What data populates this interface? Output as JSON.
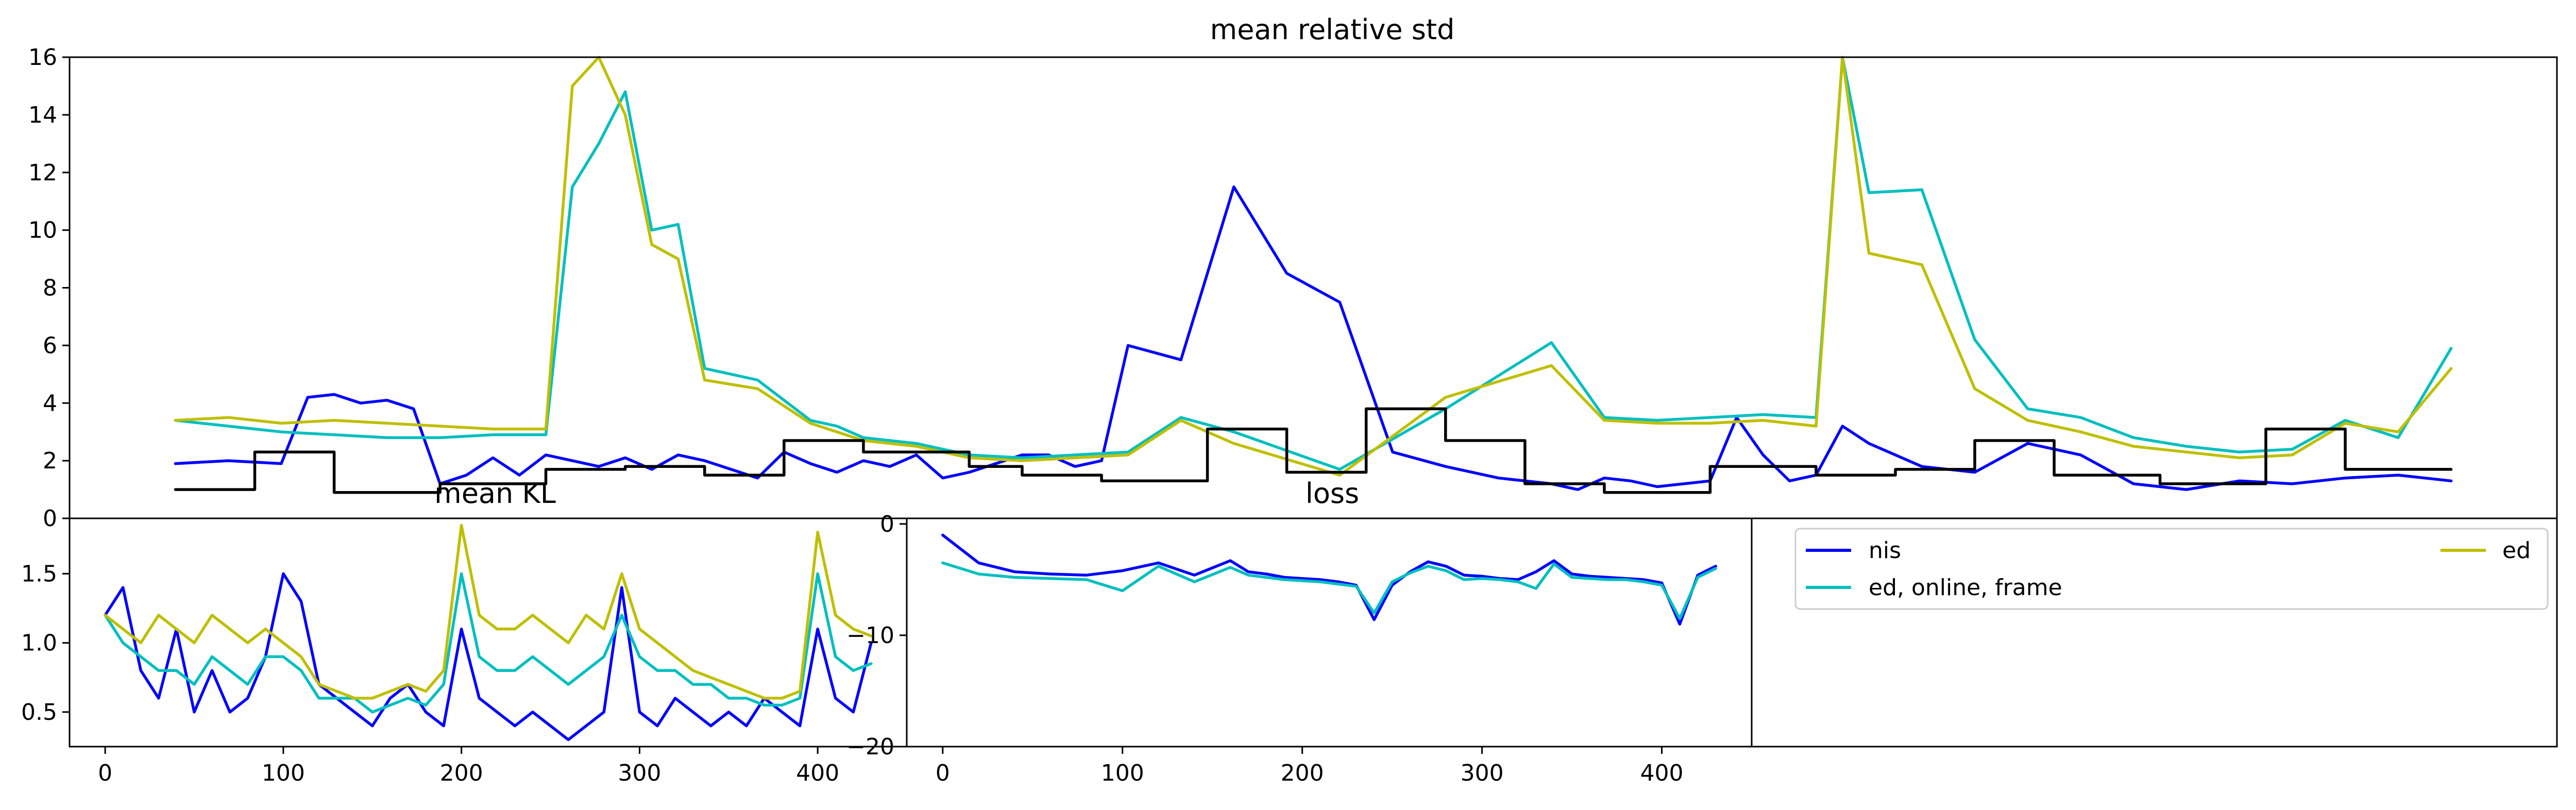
{
  "colors": {
    "nis": "#0000ff",
    "ed_online_frame": "#00bfbf",
    "ed": "#bfbf00",
    "reference": "#000000",
    "background": "#ffffff",
    "axes": "#000000"
  },
  "legend": {
    "placement": "bottom-right panel",
    "entries": [
      {
        "label": "nis",
        "color": "#0000ff"
      },
      {
        "label": "ed, online, frame",
        "color": "#00bfbf"
      },
      {
        "label": "ed",
        "color": "#bfbf00"
      }
    ]
  },
  "chart_data": [
    {
      "type": "line",
      "title": "mean relative std",
      "xlabel": "",
      "ylabel": "",
      "xlim": [
        -20,
        450
      ],
      "ylim": [
        0,
        16
      ],
      "yticks": [
        "0",
        "2",
        "4",
        "6",
        "8",
        "10",
        "12",
        "14",
        "16"
      ],
      "xticks": [],
      "grid": false,
      "series": [
        {
          "name": "nis",
          "color": "#0000ff",
          "x": [
            0,
            10,
            20,
            25,
            30,
            35,
            40,
            45,
            50,
            55,
            60,
            65,
            70,
            75,
            80,
            85,
            90,
            95,
            100,
            110,
            115,
            120,
            125,
            130,
            135,
            140,
            145,
            150,
            155,
            160,
            165,
            170,
            175,
            180,
            190,
            200,
            210,
            220,
            230,
            240,
            250,
            260,
            265,
            270,
            275,
            280,
            285,
            290,
            295,
            300,
            305,
            310,
            315,
            320,
            330,
            340,
            350,
            360,
            370,
            380,
            390,
            400,
            410,
            420,
            430
          ],
          "y": [
            1.9,
            2.0,
            1.9,
            4.2,
            4.3,
            4.0,
            4.1,
            3.8,
            1.2,
            1.5,
            2.1,
            1.5,
            2.2,
            2.0,
            1.8,
            2.1,
            1.7,
            2.2,
            2.0,
            1.4,
            2.3,
            1.9,
            1.6,
            2.0,
            1.8,
            2.2,
            1.4,
            1.6,
            1.9,
            2.2,
            2.2,
            1.8,
            2.0,
            6.0,
            5.5,
            11.5,
            8.5,
            7.5,
            2.3,
            1.8,
            1.4,
            1.2,
            1.0,
            1.4,
            1.3,
            1.1,
            1.2,
            1.3,
            3.5,
            2.2,
            1.3,
            1.5,
            3.2,
            2.6,
            1.8,
            1.6,
            2.6,
            2.2,
            1.2,
            1.0,
            1.3,
            1.2,
            1.4,
            1.5,
            1.3
          ]
        },
        {
          "name": "ed, online, frame",
          "color": "#00bfbf",
          "x": [
            0,
            10,
            20,
            30,
            40,
            50,
            60,
            70,
            75,
            80,
            85,
            90,
            95,
            100,
            110,
            120,
            125,
            130,
            135,
            140,
            150,
            160,
            170,
            180,
            190,
            200,
            220,
            240,
            260,
            270,
            280,
            290,
            300,
            310,
            315,
            320,
            330,
            340,
            350,
            360,
            370,
            380,
            390,
            400,
            410,
            420,
            430
          ],
          "y": [
            3.4,
            3.2,
            3.0,
            2.9,
            2.8,
            2.8,
            2.9,
            2.9,
            11.5,
            13.0,
            14.8,
            10.0,
            10.2,
            5.2,
            4.8,
            3.4,
            3.2,
            2.8,
            2.7,
            2.6,
            2.2,
            2.1,
            2.2,
            2.3,
            3.5,
            3.0,
            1.7,
            3.8,
            6.1,
            3.5,
            3.4,
            3.5,
            3.6,
            3.5,
            16.0,
            11.3,
            11.4,
            6.2,
            3.8,
            3.5,
            2.8,
            2.5,
            2.3,
            2.4,
            3.4,
            2.8,
            5.9
          ]
        },
        {
          "name": "ed",
          "color": "#bfbf00",
          "x": [
            0,
            10,
            20,
            30,
            40,
            50,
            60,
            70,
            75,
            80,
            85,
            90,
            95,
            100,
            110,
            120,
            125,
            130,
            135,
            140,
            150,
            160,
            170,
            180,
            190,
            200,
            220,
            240,
            260,
            270,
            280,
            290,
            300,
            310,
            315,
            320,
            330,
            340,
            350,
            360,
            370,
            380,
            390,
            400,
            410,
            420,
            430
          ],
          "y": [
            3.4,
            3.5,
            3.3,
            3.4,
            3.3,
            3.2,
            3.1,
            3.1,
            15.0,
            16.0,
            14.0,
            9.5,
            9.0,
            4.8,
            4.5,
            3.3,
            3.0,
            2.7,
            2.6,
            2.5,
            2.1,
            2.0,
            2.1,
            2.2,
            3.4,
            2.6,
            1.5,
            4.2,
            5.3,
            3.4,
            3.3,
            3.3,
            3.4,
            3.2,
            16.0,
            9.2,
            8.8,
            4.5,
            3.4,
            3.0,
            2.5,
            2.3,
            2.1,
            2.2,
            3.3,
            3.0,
            5.2
          ]
        },
        {
          "name": "",
          "color": "#000000",
          "x": [
            0,
            15,
            15,
            30,
            30,
            50,
            50,
            70,
            70,
            85,
            85,
            100,
            100,
            115,
            115,
            130,
            130,
            150,
            150,
            160,
            160,
            175,
            175,
            195,
            195,
            210,
            210,
            225,
            225,
            240,
            240,
            255,
            255,
            270,
            270,
            290,
            290,
            310,
            310,
            325,
            325,
            340,
            340,
            355,
            355,
            375,
            375,
            395,
            395,
            410,
            410,
            430
          ],
          "y": [
            1.0,
            1.0,
            2.3,
            2.3,
            0.9,
            0.9,
            1.2,
            1.2,
            1.7,
            1.7,
            1.8,
            1.8,
            1.5,
            1.5,
            2.7,
            2.7,
            2.3,
            2.3,
            1.8,
            1.8,
            1.5,
            1.5,
            1.3,
            1.3,
            3.1,
            3.1,
            1.6,
            1.6,
            3.8,
            3.8,
            2.7,
            2.7,
            1.2,
            1.2,
            0.9,
            0.9,
            1.8,
            1.8,
            1.5,
            1.5,
            1.7,
            1.7,
            2.7,
            2.7,
            1.5,
            1.5,
            1.2,
            1.2,
            3.1,
            3.1,
            1.7,
            1.7
          ]
        }
      ]
    },
    {
      "type": "line",
      "title": "mean KL",
      "xlabel": "",
      "ylabel": "",
      "xlim": [
        -20,
        450
      ],
      "ylim": [
        0.25,
        1.9
      ],
      "yticks": [
        "0.5",
        "1.0",
        "1.5"
      ],
      "xticks": [
        "0",
        "100",
        "200",
        "300",
        "400"
      ],
      "grid": false,
      "series": [
        {
          "name": "nis",
          "color": "#0000ff",
          "x": [
            0,
            10,
            20,
            30,
            40,
            50,
            60,
            70,
            80,
            90,
            100,
            110,
            120,
            130,
            140,
            150,
            160,
            170,
            180,
            190,
            200,
            210,
            220,
            230,
            240,
            250,
            260,
            270,
            280,
            290,
            300,
            310,
            320,
            330,
            340,
            350,
            360,
            370,
            380,
            390,
            400,
            410,
            420,
            430
          ],
          "y": [
            1.2,
            1.4,
            0.8,
            0.6,
            1.1,
            0.5,
            0.8,
            0.5,
            0.6,
            0.9,
            1.5,
            1.3,
            0.7,
            0.6,
            0.5,
            0.4,
            0.6,
            0.7,
            0.5,
            0.4,
            1.1,
            0.6,
            0.5,
            0.4,
            0.5,
            0.4,
            0.3,
            0.4,
            0.5,
            1.4,
            0.5,
            0.4,
            0.6,
            0.5,
            0.4,
            0.5,
            0.4,
            0.6,
            0.5,
            0.4,
            1.1,
            0.6,
            0.5,
            1.0
          ]
        },
        {
          "name": "ed, online, frame",
          "color": "#00bfbf",
          "x": [
            0,
            10,
            20,
            30,
            40,
            50,
            60,
            70,
            80,
            90,
            100,
            110,
            120,
            130,
            140,
            150,
            160,
            170,
            180,
            190,
            200,
            210,
            220,
            230,
            240,
            250,
            260,
            270,
            280,
            290,
            300,
            310,
            320,
            330,
            340,
            350,
            360,
            370,
            380,
            390,
            400,
            410,
            420,
            430
          ],
          "y": [
            1.2,
            1.0,
            0.9,
            0.8,
            0.8,
            0.7,
            0.9,
            0.8,
            0.7,
            0.9,
            0.9,
            0.8,
            0.6,
            0.6,
            0.6,
            0.5,
            0.55,
            0.6,
            0.55,
            0.7,
            1.5,
            0.9,
            0.8,
            0.8,
            0.9,
            0.8,
            0.7,
            0.8,
            0.9,
            1.2,
            0.9,
            0.8,
            0.8,
            0.7,
            0.7,
            0.6,
            0.6,
            0.55,
            0.55,
            0.6,
            1.5,
            0.9,
            0.8,
            0.85
          ]
        },
        {
          "name": "ed",
          "color": "#bfbf00",
          "x": [
            0,
            10,
            20,
            30,
            40,
            50,
            60,
            70,
            80,
            90,
            100,
            110,
            120,
            130,
            140,
            150,
            160,
            170,
            180,
            190,
            200,
            210,
            220,
            230,
            240,
            250,
            260,
            270,
            280,
            290,
            300,
            310,
            320,
            330,
            340,
            350,
            360,
            370,
            380,
            390,
            400,
            410,
            420,
            430
          ],
          "y": [
            1.2,
            1.1,
            1.0,
            1.2,
            1.1,
            1.0,
            1.2,
            1.1,
            1.0,
            1.1,
            1.0,
            0.9,
            0.7,
            0.65,
            0.6,
            0.6,
            0.65,
            0.7,
            0.65,
            0.8,
            1.85,
            1.2,
            1.1,
            1.1,
            1.2,
            1.1,
            1.0,
            1.2,
            1.1,
            1.5,
            1.1,
            1.0,
            0.9,
            0.8,
            0.75,
            0.7,
            0.65,
            0.6,
            0.6,
            0.65,
            1.8,
            1.2,
            1.1,
            1.05
          ]
        }
      ]
    },
    {
      "type": "line",
      "title": "loss",
      "xlabel": "",
      "ylabel": "",
      "xlim": [
        -20,
        450
      ],
      "ylim": [
        -20,
        0.5
      ],
      "yticks": [
        "0",
        "−10",
        "−20"
      ],
      "xticks": [
        "0",
        "100",
        "200",
        "300",
        "400"
      ],
      "grid": false,
      "series": [
        {
          "name": "nis",
          "color": "#0000ff",
          "x": [
            0,
            20,
            40,
            60,
            80,
            100,
            120,
            140,
            160,
            170,
            180,
            190,
            200,
            210,
            220,
            230,
            240,
            250,
            260,
            270,
            280,
            290,
            300,
            310,
            320,
            330,
            340,
            350,
            360,
            370,
            380,
            390,
            400,
            410,
            420,
            430
          ],
          "y": [
            -1.0,
            -3.5,
            -4.3,
            -4.5,
            -4.6,
            -4.2,
            -3.5,
            -4.6,
            -3.3,
            -4.3,
            -4.5,
            -4.8,
            -4.9,
            -5.0,
            -5.2,
            -5.5,
            -8.6,
            -5.5,
            -4.3,
            -3.4,
            -3.8,
            -4.6,
            -4.7,
            -4.9,
            -5.0,
            -4.3,
            -3.3,
            -4.5,
            -4.7,
            -4.8,
            -4.9,
            -5.0,
            -5.3,
            -9.0,
            -4.6,
            -3.8
          ]
        },
        {
          "name": "ed, online, frame",
          "color": "#00bfbf",
          "x": [
            0,
            20,
            40,
            60,
            80,
            100,
            120,
            140,
            160,
            170,
            180,
            190,
            200,
            210,
            220,
            230,
            240,
            250,
            260,
            270,
            280,
            290,
            300,
            310,
            320,
            330,
            340,
            350,
            360,
            370,
            380,
            390,
            400,
            410,
            420,
            430
          ],
          "y": [
            -3.5,
            -4.5,
            -4.8,
            -4.9,
            -5.0,
            -6.0,
            -3.8,
            -5.2,
            -3.9,
            -4.6,
            -4.8,
            -5.0,
            -5.1,
            -5.2,
            -5.4,
            -5.6,
            -8.0,
            -5.2,
            -4.4,
            -3.8,
            -4.2,
            -5.0,
            -4.9,
            -5.0,
            -5.2,
            -5.8,
            -3.6,
            -4.8,
            -4.9,
            -5.0,
            -5.0,
            -5.2,
            -5.5,
            -8.5,
            -4.8,
            -4.0
          ]
        }
      ]
    }
  ]
}
